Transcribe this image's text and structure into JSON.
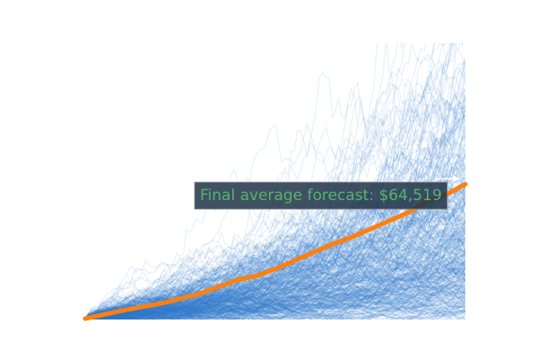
{
  "chart_data": {
    "type": "line",
    "title": "",
    "xlabel": "",
    "ylabel": "",
    "axes_visible": false,
    "grid": false,
    "xlim": [
      0,
      100
    ],
    "ylim": [
      0,
      100
    ],
    "background_simulations": {
      "description_visible": false,
      "count_estimate": 500,
      "color": "#2f78cc"
    },
    "series": [
      {
        "name": "",
        "color": "#ff7f0e",
        "x": [
          0,
          10,
          20,
          30,
          35,
          40,
          45,
          50,
          55,
          60,
          65,
          70,
          75,
          80,
          85,
          90,
          95,
          100
        ],
        "values": [
          0,
          3,
          5.5,
          9,
          11.5,
          14,
          15.5,
          18,
          21,
          24,
          27,
          29.5,
          32.5,
          35.5,
          38.5,
          42.5,
          45,
          48.8
        ]
      }
    ],
    "annotation": {
      "text": "Final average forecast: $64,519",
      "text_color": "#55b36e",
      "box_color": "#1e3346",
      "arrow_color": "#ffffff",
      "target_x": 100,
      "target_y": 48.8
    }
  }
}
